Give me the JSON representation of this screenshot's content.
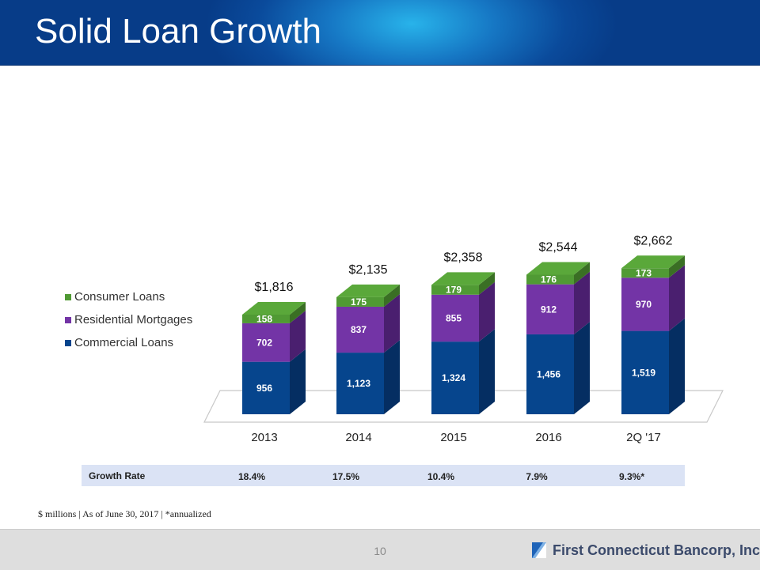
{
  "title": "Solid Loan Growth",
  "chart_data": {
    "type": "bar",
    "stacked": true,
    "categories": [
      "2013",
      "2014",
      "2015",
      "2016",
      "2Q '17"
    ],
    "series": [
      {
        "name": "Commercial Loans",
        "values": [
          956,
          1123,
          1324,
          1456,
          1519
        ],
        "labels": [
          "956",
          "1,123",
          "1,324",
          "1,456",
          "1,519"
        ],
        "color": "#06458d"
      },
      {
        "name": "Residential Mortgages",
        "values": [
          702,
          837,
          855,
          912,
          970
        ],
        "labels": [
          "702",
          "837",
          "855",
          "912",
          "970"
        ],
        "color": "#7334a6"
      },
      {
        "name": "Consumer Loans",
        "values": [
          158,
          175,
          179,
          176,
          173
        ],
        "labels": [
          "158",
          "175",
          "179",
          "176",
          "173"
        ],
        "color": "#509a34"
      }
    ],
    "totals": [
      "$1,816",
      "$2,135",
      "$2,358",
      "$2,544",
      "$2,662"
    ],
    "legend_position": "left",
    "grid": false
  },
  "growth": {
    "label": "Growth Rate",
    "values": [
      "18.4%",
      "17.5%",
      "10.4%",
      "7.9%",
      "9.3%*"
    ]
  },
  "footnote": "$ millions | As of June 30, 2017 | *annualized",
  "footer": {
    "page": "10",
    "logo_text": "First Connecticut Bancorp, Inc."
  }
}
